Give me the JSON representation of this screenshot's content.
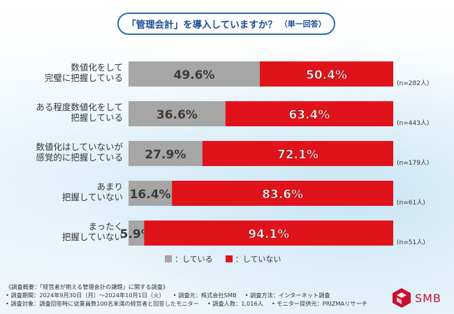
{
  "title": {
    "main": "「管理会計」を導入していますか？",
    "sub": "（単一回答）"
  },
  "colors": {
    "doing": "#a6a6a6",
    "notdoing": "#e0131b",
    "title": "#1d4f95",
    "brand": "#c8102e"
  },
  "chart_data": {
    "type": "bar",
    "orientation": "horizontal-stacked",
    "title": "「管理会計」を導入していますか？（単一回答）",
    "categories": [
      [
        "数値化をして",
        "完璧に把握している"
      ],
      [
        "ある程度数値化をして",
        "把握している"
      ],
      [
        "数値化はしていないが",
        "感覚的に把握している"
      ],
      [
        "あまり",
        "把握していない"
      ],
      [
        "まったく",
        "把握していない"
      ]
    ],
    "series": [
      {
        "name": "している",
        "values": [
          49.6,
          36.6,
          27.9,
          16.4,
          5.9
        ],
        "labels": [
          "49.6%",
          "36.6%",
          "27.9%",
          "16.4%",
          "5.9%"
        ]
      },
      {
        "name": "していない",
        "values": [
          50.4,
          63.4,
          72.1,
          83.6,
          94.1
        ],
        "labels": [
          "50.4%",
          "63.4%",
          "72.1%",
          "83.6%",
          "94.1%"
        ]
      }
    ],
    "n_labels": [
      "(n=282人)",
      "(n=443人)",
      "(n=179人)",
      "(n=61人)",
      "(n=51人)"
    ],
    "xlim": [
      0,
      100
    ]
  },
  "legend": {
    "doing_label": "：している",
    "notdoing_label": "：していない"
  },
  "footer": {
    "line1": "《調査概要：「経営者が抱える管理会計の課題」に関する調査》",
    "line2a": "• 調査期間：2024年9月30日（月）～2024年10月1日（火）",
    "line2b": "• 調査元：株式会社SMB",
    "line2c": "• 調査方法：インターネット調査",
    "line3a": "• 調査対象：調査回答時に従業員数100名未満の経営者と回答したモニター",
    "line3b": "• 調査人数：1,016人",
    "line3c": "• モニター提供元：PRIZMAリサーチ"
  },
  "logo": {
    "text": "SMB"
  }
}
